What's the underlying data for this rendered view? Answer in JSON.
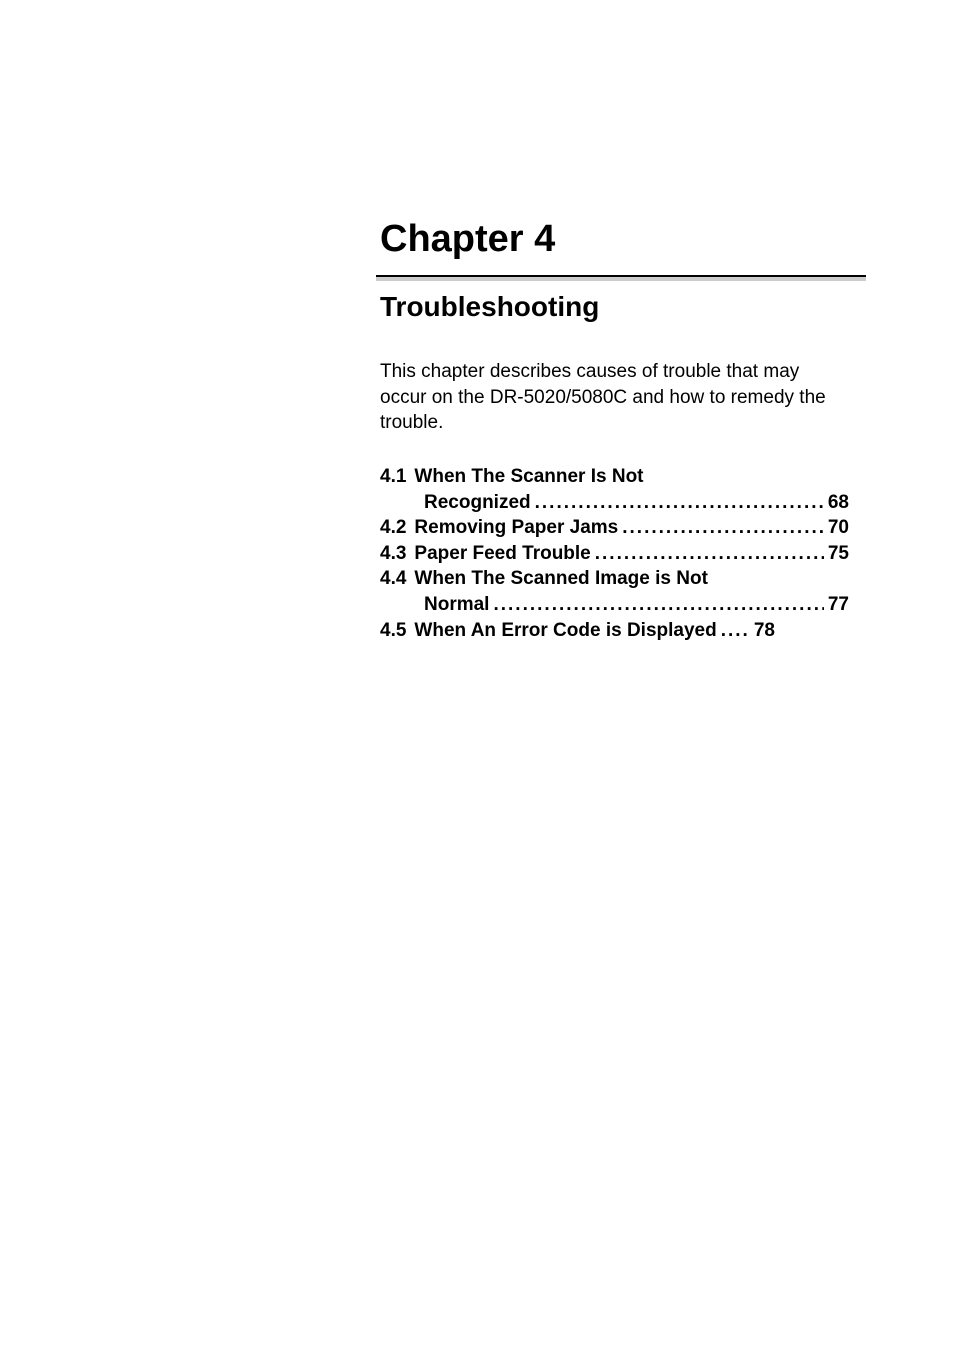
{
  "chapter": {
    "title": "Chapter 4",
    "section_title": "Troubleshooting",
    "intro": "This chapter describes causes of trouble that may occur on the DR-5020/5080C and how to remedy the trouble."
  },
  "toc": [
    {
      "num": "4.1",
      "label": "When The Scanner Is Not",
      "label2": "Recognized",
      "page": "68",
      "wrap": true
    },
    {
      "num": "4.2",
      "label": "Removing Paper Jams",
      "page": "70",
      "wrap": false
    },
    {
      "num": "4.3",
      "label": "Paper Feed Trouble",
      "page": "75",
      "wrap": false
    },
    {
      "num": "4.4",
      "label": "When The Scanned Image is Not",
      "label2": "Normal",
      "page": "77",
      "wrap": true
    },
    {
      "num": "4.5",
      "label": "When An Error Code is Displayed",
      "page": "78",
      "wrap": false,
      "short_dots": "...."
    }
  ],
  "colors": {
    "text": "#000000",
    "background": "#ffffff",
    "divider_gray": "#cccccc",
    "divider_line": "#000000"
  },
  "typography": {
    "chapter_title_size": 38,
    "section_title_size": 28,
    "body_size": 19,
    "toc_size": 19
  }
}
